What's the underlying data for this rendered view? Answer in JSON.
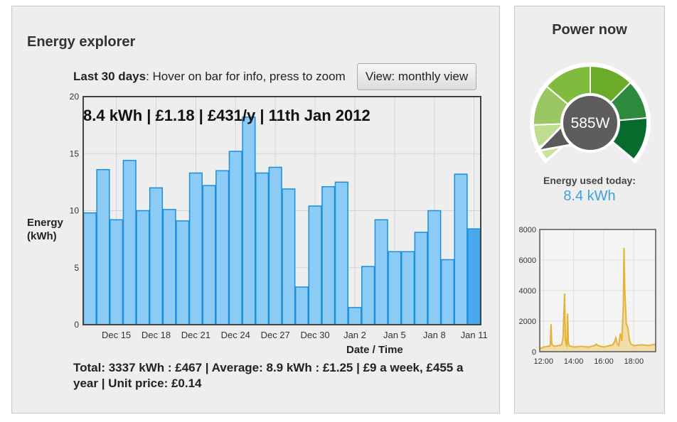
{
  "explorer": {
    "title": "Energy explorer",
    "subhead_bold": "Last 30 days",
    "subhead_rest": ": Hover on bar for info, press to zoom",
    "view_button": "View: monthly view",
    "hover_info": "8.4 kWh | £1.18 | £431/y | 11th Jan 2012",
    "totals": "Total: 3337 kWh : £467 | Average: 8.9 kWh : £1.25 | £9 a week, £455 a year | Unit price: £0.14"
  },
  "power": {
    "title": "Power now",
    "gauge_value": "585W",
    "gauge_watts": 585,
    "used_label": "Energy used today:",
    "used_value": "8.4 kWh"
  },
  "colors": {
    "bar_fill": "#8ccbf5",
    "bar_stroke": "#1a8fdd",
    "bar_highlight": "#4aa9ee",
    "accent_blue": "#3ba3d8",
    "mini_line": "#e3b33a",
    "mini_fill": "#efd68e"
  },
  "chart_data": [
    {
      "type": "bar",
      "xlabel": "Date / Time",
      "ylabel": "Energy (kWh)",
      "ylabel_lines": [
        "Energy",
        "(kWh)"
      ],
      "ylim": [
        0,
        20
      ],
      "yticks": [
        0,
        5,
        10,
        15,
        20
      ],
      "xtick_labels": [
        "Dec 15",
        "Dec 18",
        "Dec 21",
        "Dec 24",
        "Dec 27",
        "Dec 30",
        "Jan 2",
        "Jan 5",
        "Jan 8",
        "Jan 11"
      ],
      "xtick_positions": [
        2.5,
        5.5,
        8.5,
        11.5,
        14.5,
        17.5,
        20.5,
        23.5,
        26.5,
        29.5
      ],
      "dates": [
        "Dec 13",
        "Dec 14",
        "Dec 15",
        "Dec 16",
        "Dec 17",
        "Dec 18",
        "Dec 19",
        "Dec 20",
        "Dec 21",
        "Dec 22",
        "Dec 23",
        "Dec 24",
        "Dec 25",
        "Dec 26",
        "Dec 27",
        "Dec 28",
        "Dec 29",
        "Dec 30",
        "Dec 31",
        "Jan 1",
        "Jan 2",
        "Jan 3",
        "Jan 4",
        "Jan 5",
        "Jan 6",
        "Jan 7",
        "Jan 8",
        "Jan 9",
        "Jan 10",
        "Jan 11"
      ],
      "values": [
        9.8,
        13.6,
        9.2,
        14.4,
        10.0,
        12.0,
        10.1,
        9.1,
        13.3,
        12.2,
        13.5,
        15.2,
        18.2,
        13.3,
        13.8,
        11.9,
        3.3,
        10.4,
        12.1,
        12.5,
        1.5,
        5.1,
        9.2,
        6.4,
        6.4,
        8.1,
        10.0,
        5.7,
        13.2,
        8.4
      ],
      "highlighted_index": 29,
      "grid": true
    },
    {
      "type": "area",
      "ylim": [
        0,
        8000
      ],
      "yticks": [
        0,
        2000,
        4000,
        6000,
        8000
      ],
      "xlim": [
        11.75,
        19.45
      ],
      "xtick_labels": [
        "12:00",
        "14:00",
        "16:00",
        "18:00"
      ],
      "xtick_values": [
        12,
        14,
        16,
        18
      ],
      "x": [
        11.75,
        12.0,
        12.3,
        12.45,
        12.5,
        12.55,
        12.7,
        13.0,
        13.2,
        13.3,
        13.4,
        13.45,
        13.5,
        13.55,
        13.6,
        13.65,
        13.7,
        13.8,
        14.0,
        14.5,
        15.0,
        15.4,
        15.5,
        15.6,
        15.8,
        16.0,
        16.2,
        16.4,
        16.6,
        16.7,
        16.8,
        16.9,
        17.0,
        17.1,
        17.2,
        17.3,
        17.35,
        17.4,
        17.5,
        17.6,
        17.7,
        17.8,
        18.0,
        18.5,
        19.0,
        19.45
      ],
      "y": [
        200,
        300,
        350,
        400,
        1800,
        500,
        350,
        400,
        450,
        900,
        3800,
        900,
        500,
        400,
        2500,
        600,
        400,
        350,
        300,
        350,
        300,
        400,
        500,
        400,
        350,
        300,
        350,
        400,
        450,
        600,
        900,
        500,
        400,
        1200,
        700,
        3000,
        6800,
        4000,
        1800,
        1600,
        800,
        500,
        400,
        450,
        400,
        500
      ],
      "grid": true
    }
  ]
}
